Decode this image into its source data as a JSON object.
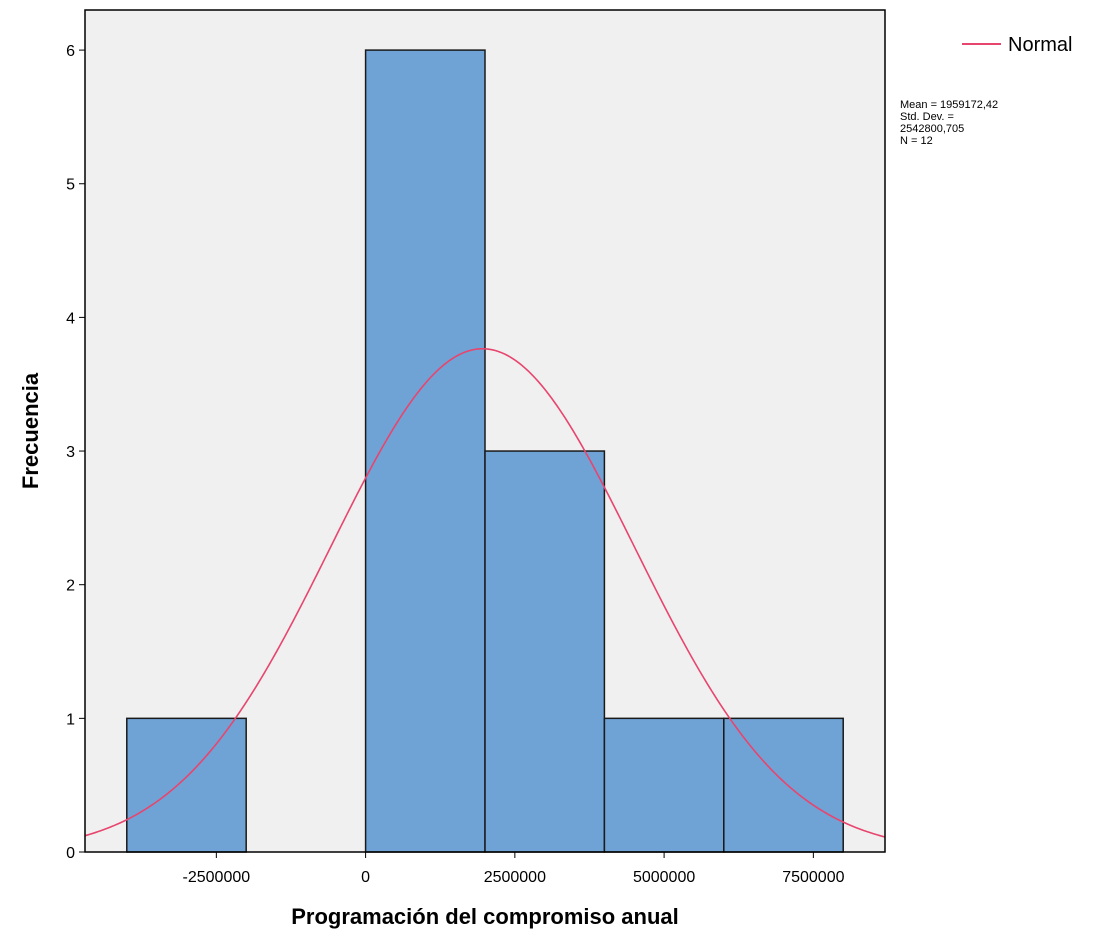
{
  "chart_data": {
    "type": "bar",
    "subtype": "histogram",
    "xlabel": "Programación del compromiso anual",
    "ylabel": "Frecuencia",
    "bins": [
      {
        "start": -4000000,
        "end": -2000000,
        "count": 1
      },
      {
        "start": -2000000,
        "end": 0,
        "count": 0
      },
      {
        "start": 0,
        "end": 2000000,
        "count": 6
      },
      {
        "start": 2000000,
        "end": 4000000,
        "count": 3
      },
      {
        "start": 4000000,
        "end": 6000000,
        "count": 1
      },
      {
        "start": 6000000,
        "end": 8000000,
        "count": 1
      }
    ],
    "xlim": [
      -4700000,
      8700000
    ],
    "ylim": [
      0,
      6.3
    ],
    "xticks": [
      -2500000,
      0,
      2500000,
      5000000,
      7500000
    ],
    "xtick_labels": [
      "-2500000",
      "0",
      "2500000",
      "5000000",
      "7500000"
    ],
    "yticks": [
      0,
      1,
      2,
      3,
      4,
      5,
      6
    ],
    "ytick_labels": [
      "0",
      "1",
      "2",
      "3",
      "4",
      "5",
      "6"
    ],
    "normal_curve": {
      "mean": 1959172.42,
      "std": 2542800.705,
      "n": 12,
      "bin_width": 2000000
    },
    "legend": {
      "entries": [
        "Normal"
      ],
      "placement": "top-right, outside plot"
    },
    "stats": [
      "Mean = 1959172,42",
      "Std. Dev. =",
      "2542800,705",
      "N = 12"
    ],
    "grid": false,
    "colors": {
      "bar_fill": "#6fa3d6",
      "bar_stroke": "#1a1a1a",
      "curve": "#e8456e",
      "plot_background": "#f0f0f0",
      "frame": "#000000"
    }
  }
}
